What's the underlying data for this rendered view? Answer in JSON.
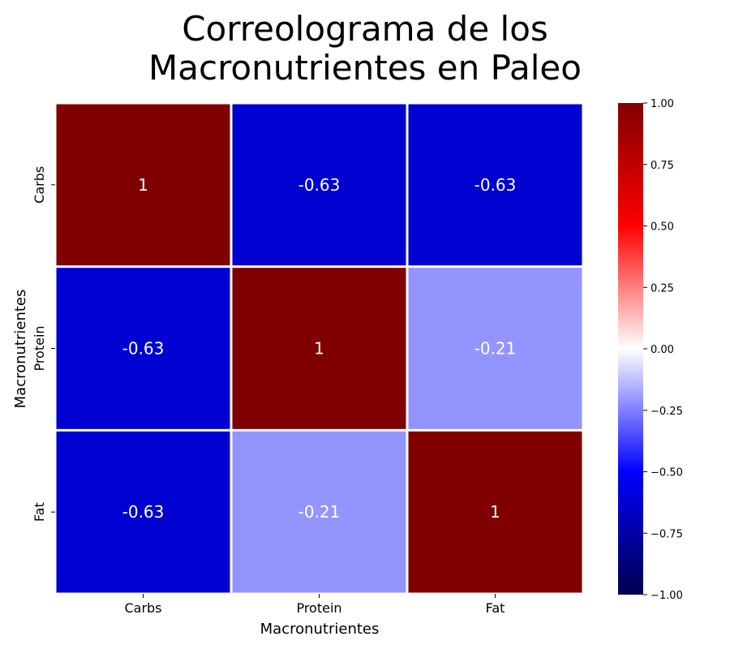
{
  "chart_data": {
    "type": "heatmap",
    "title_lines": [
      "Correolograma de los",
      "Macronutrientes en Paleo"
    ],
    "xlabel": "Macronutrientes",
    "ylabel": "Macronutrientes",
    "x_categories": [
      "Carbs",
      "Protein",
      "Fat"
    ],
    "y_categories": [
      "Carbs",
      "Protein",
      "Fat"
    ],
    "values": [
      [
        1,
        -0.63,
        -0.63
      ],
      [
        -0.63,
        1,
        -0.21
      ],
      [
        -0.63,
        -0.21,
        1
      ]
    ],
    "annotations": [
      [
        "1",
        "-0.63",
        "-0.63"
      ],
      [
        "-0.63",
        "1",
        "-0.21"
      ],
      [
        "-0.63",
        "-0.21",
        "1"
      ]
    ],
    "colormap": "seismic",
    "vmin": -1,
    "vmax": 1,
    "colorbar_ticks": [
      1.0,
      0.75,
      0.5,
      0.25,
      0.0,
      -0.25,
      -0.5,
      -0.75,
      -1.0
    ],
    "colorbar_tick_labels": [
      "1.00",
      "0.75",
      "0.50",
      "0.25",
      "0.00",
      "−0.25",
      "−0.50",
      "−0.75",
      "−1.00"
    ],
    "annotation_color": "#ffffff",
    "cell_separator_color": "#ffffff"
  }
}
